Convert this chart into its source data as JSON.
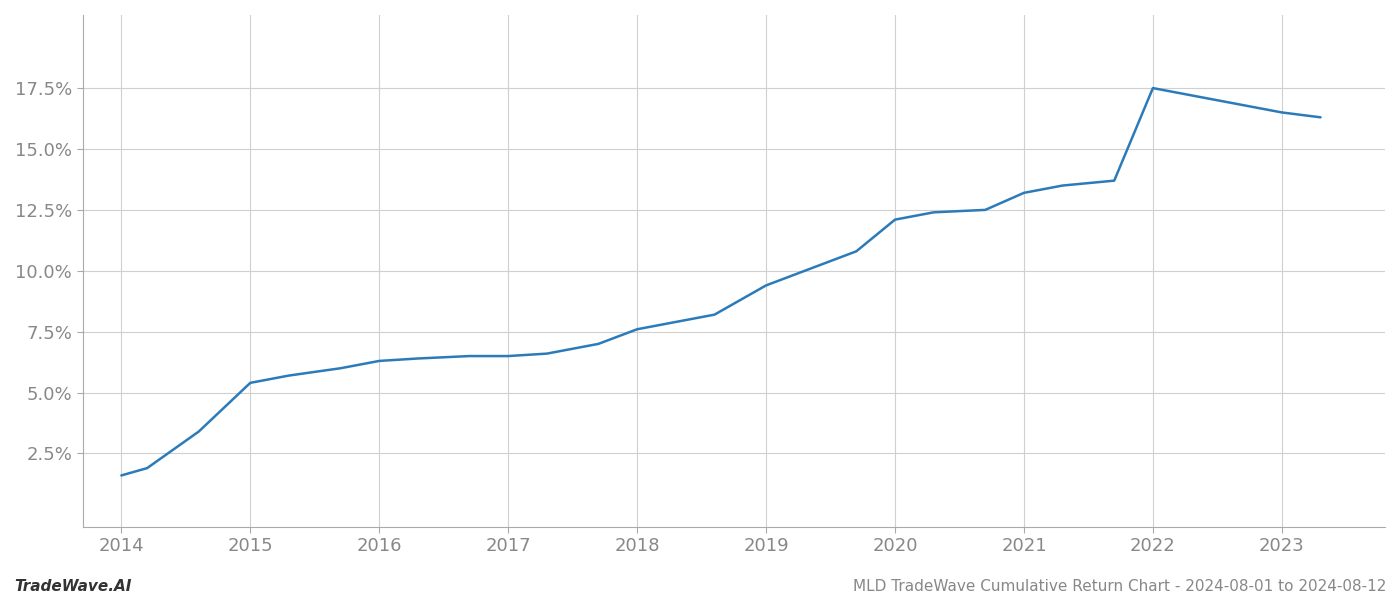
{
  "title": "",
  "footer_left": "TradeWave.AI",
  "footer_right": "MLD TradeWave Cumulative Return Chart - 2024-08-01 to 2024-08-12",
  "line_color": "#2b7bba",
  "background_color": "#ffffff",
  "grid_color": "#d0d0d0",
  "x_years": [
    2014.0,
    2014.2,
    2014.6,
    2015.0,
    2015.3,
    2015.7,
    2016.0,
    2016.3,
    2016.7,
    2017.0,
    2017.3,
    2017.7,
    2018.0,
    2018.3,
    2018.6,
    2019.0,
    2019.3,
    2019.7,
    2020.0,
    2020.3,
    2020.7,
    2021.0,
    2021.3,
    2021.7,
    2022.0,
    2022.3,
    2022.7,
    2023.0,
    2023.3
  ],
  "y_values": [
    0.016,
    0.019,
    0.034,
    0.054,
    0.057,
    0.06,
    0.063,
    0.064,
    0.065,
    0.065,
    0.066,
    0.07,
    0.076,
    0.079,
    0.082,
    0.094,
    0.1,
    0.108,
    0.121,
    0.124,
    0.125,
    0.132,
    0.135,
    0.137,
    0.175,
    0.172,
    0.168,
    0.165,
    0.163
  ],
  "xlim": [
    2013.7,
    2023.8
  ],
  "ylim": [
    -0.005,
    0.205
  ],
  "yticks": [
    0.025,
    0.05,
    0.075,
    0.1,
    0.125,
    0.15,
    0.175
  ],
  "ytick_labels": [
    "2.5%",
    "5.0%",
    "7.5%",
    "10.0%",
    "12.5%",
    "15.0%",
    "17.5%"
  ],
  "xticks": [
    2014,
    2015,
    2016,
    2017,
    2018,
    2019,
    2020,
    2021,
    2022,
    2023
  ],
  "line_width": 1.8,
  "tick_label_color": "#888888",
  "tick_label_fontsize": 13,
  "footer_fontsize": 11,
  "footer_left_bold": true
}
